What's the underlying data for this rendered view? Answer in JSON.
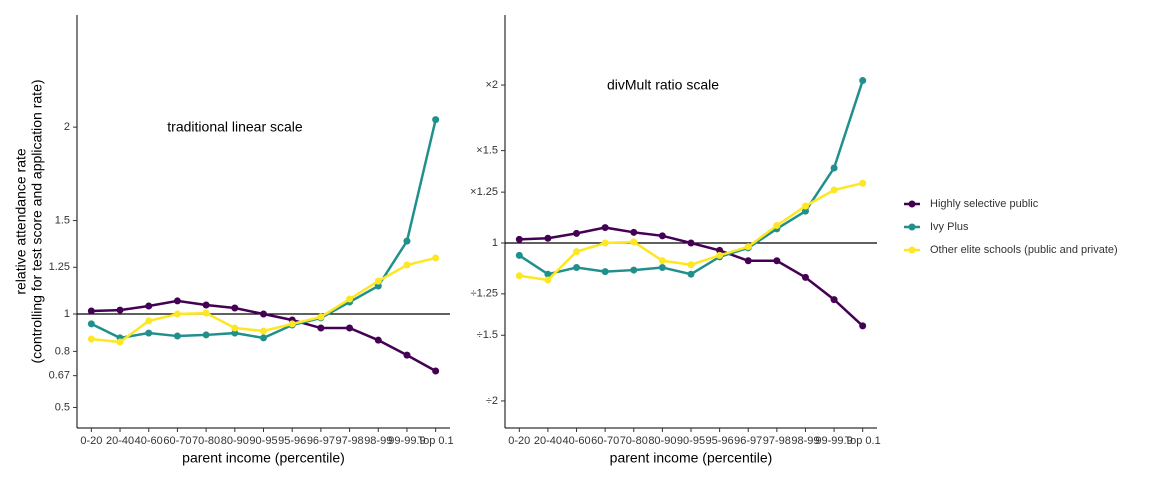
{
  "chart_data": [
    {
      "type": "line",
      "annotation": "traditional linear scale",
      "xlabel": "parent income (percentile)",
      "ylabel": [
        "relative attendance rate",
        "(controlling for test score and application rate)"
      ],
      "categories": [
        "0-20",
        "20-40",
        "40-60",
        "60-70",
        "70-80",
        "80-90",
        "90-95",
        "95-96",
        "96-97",
        "97-98",
        "98-99",
        "99-99.9",
        "Top 0.1"
      ],
      "ylim": [
        0.39,
        2.6
      ],
      "yticks": [
        0.5,
        0.67,
        0.8,
        1,
        1.25,
        1.5,
        2
      ],
      "log_scale": false,
      "hline": 1,
      "series": [
        {
          "name": "Highly selective public",
          "color": "#440154",
          "values": [
            1.016,
            1.021,
            1.043,
            1.07,
            1.048,
            1.032,
            1.0,
            0.968,
            0.925,
            0.925,
            0.86,
            0.78,
            0.695
          ]
        },
        {
          "name": "Ivy Plus",
          "color": "#21908d",
          "values": [
            0.947,
            0.872,
            0.898,
            0.882,
            0.888,
            0.898,
            0.872,
            0.941,
            0.979,
            1.064,
            1.15,
            1.39,
            2.04
          ]
        },
        {
          "name": "Other elite schools (public and private)",
          "color": "#fde725",
          "values": [
            0.866,
            0.85,
            0.963,
            1.0,
            1.005,
            0.925,
            0.909,
            0.947,
            0.984,
            1.08,
            1.176,
            1.262,
            1.3
          ]
        }
      ]
    },
    {
      "type": "line",
      "annotation": "divMult ratio scale",
      "xlabel": "parent income (percentile)",
      "categories": [
        "0-20",
        "20-40",
        "40-60",
        "60-70",
        "70-80",
        "80-90",
        "90-95",
        "95-96",
        "96-97",
        "97-98",
        "98-99",
        "99-99.9",
        "Top 0.1"
      ],
      "ylim": [
        0.444,
        2.72
      ],
      "log_scale": true,
      "hline": 1,
      "legend": "right",
      "yticks": [
        {
          "value": 0.5,
          "label": "÷2"
        },
        {
          "value": 0.667,
          "label": "÷1.5"
        },
        {
          "value": 0.8,
          "label": "÷1.25"
        },
        1,
        {
          "value": 1.25,
          "label": "×1.25"
        },
        {
          "value": 1.5,
          "label": "×1.5"
        },
        {
          "value": 2,
          "label": "×2"
        }
      ],
      "series": [
        {
          "name": "Highly selective public",
          "color": "#440154",
          "values": [
            1.016,
            1.021,
            1.043,
            1.07,
            1.048,
            1.032,
            1.0,
            0.968,
            0.925,
            0.925,
            0.86,
            0.78,
            0.695
          ]
        },
        {
          "name": "Ivy Plus",
          "color": "#21908d",
          "values": [
            0.947,
            0.872,
            0.898,
            0.882,
            0.888,
            0.898,
            0.872,
            0.941,
            0.979,
            1.064,
            1.15,
            1.39,
            2.04
          ]
        },
        {
          "name": "Other elite schools (public and private)",
          "color": "#fde725",
          "values": [
            0.866,
            0.85,
            0.963,
            1.0,
            1.005,
            0.925,
            0.909,
            0.947,
            0.984,
            1.08,
            1.176,
            1.262,
            1.3
          ]
        }
      ]
    }
  ]
}
